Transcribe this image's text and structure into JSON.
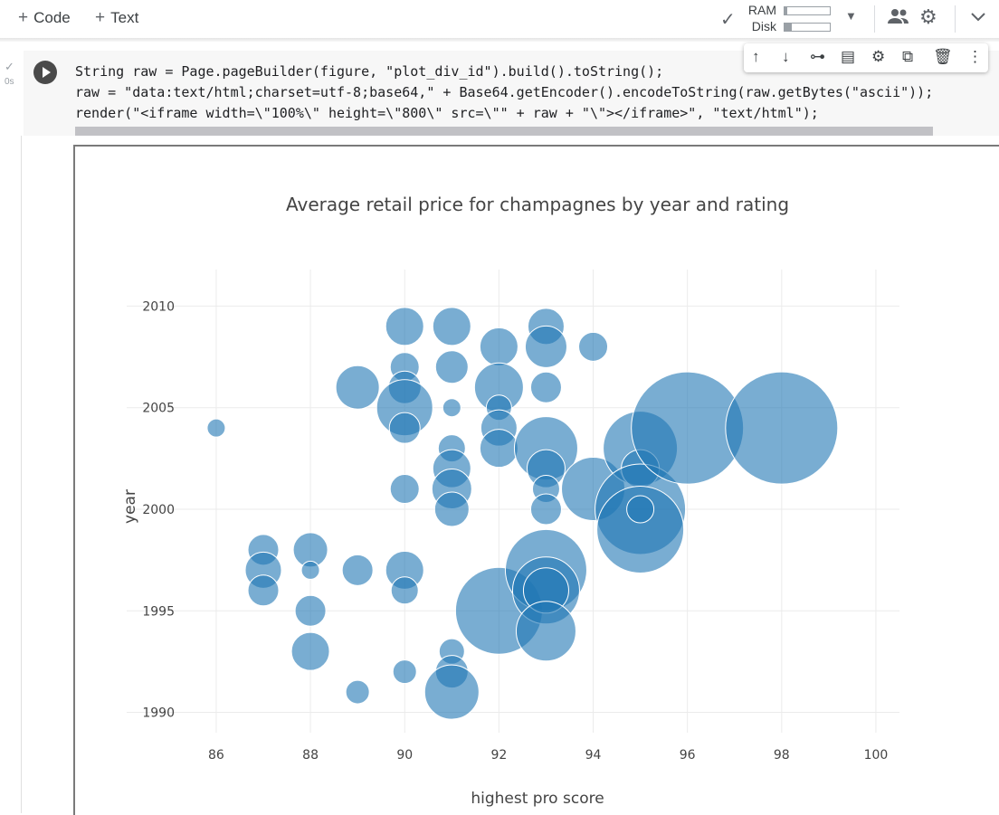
{
  "toolbar": {
    "add_code_label": "Code",
    "add_text_label": "Text",
    "ram_label": "RAM",
    "disk_label": "Disk",
    "ram_usage": 0.06,
    "disk_usage": 0.16
  },
  "cell": {
    "exec_time": "0s",
    "code_lines": [
      "String raw = Page.pageBuilder(figure, \"plot_div_id\").build().toString();",
      "raw = \"data:text/html;charset=utf-8;base64,\" + Base64.getEncoder().encodeToString(raw.getBytes(\"ascii\"));",
      "render(\"<iframe width=\\\"100%\\\" height=\\\"800\\\" src=\\\"\" + raw + \"\\\"></iframe>\", \"text/html\");"
    ]
  },
  "icons": {
    "toolbar": [
      "check-icon",
      "dropdown-icon",
      "share-icon",
      "settings-icon",
      "collapse-icon"
    ],
    "cell": [
      "move-up-icon",
      "move-down-icon",
      "link-icon",
      "comment-icon",
      "cell-settings-icon",
      "mirror-icon",
      "delete-icon",
      "more-icon"
    ]
  },
  "colors": {
    "marker": "#1f77b4",
    "grid": "#ebebeb",
    "text": "#444444"
  },
  "chart_data": {
    "type": "scatter",
    "title": "Average retail price for champagnes by year and rating",
    "xlabel": "highest pro score",
    "ylabel": "year",
    "xticks": [
      86,
      88,
      90,
      92,
      94,
      96,
      98,
      100
    ],
    "yticks": [
      1990,
      1995,
      2000,
      2005,
      2010
    ],
    "xlim": [
      84.1,
      100.5
    ],
    "ylim": [
      1989,
      2011.8
    ],
    "marker_color": "#1f77b4",
    "marker_opacity": 0.6,
    "points": [
      {
        "x": 86,
        "y": 2004,
        "r": 10
      },
      {
        "x": 87,
        "y": 1998,
        "r": 17
      },
      {
        "x": 87,
        "y": 1997,
        "r": 20
      },
      {
        "x": 87,
        "y": 1996,
        "r": 17
      },
      {
        "x": 88,
        "y": 1998,
        "r": 19
      },
      {
        "x": 88,
        "y": 1997,
        "r": 10
      },
      {
        "x": 88,
        "y": 1995,
        "r": 17
      },
      {
        "x": 88,
        "y": 1993,
        "r": 21
      },
      {
        "x": 89,
        "y": 2006,
        "r": 24
      },
      {
        "x": 89,
        "y": 1997,
        "r": 17
      },
      {
        "x": 89,
        "y": 1991,
        "r": 13
      },
      {
        "x": 90,
        "y": 2009,
        "r": 21
      },
      {
        "x": 90,
        "y": 2007,
        "r": 16
      },
      {
        "x": 90,
        "y": 2006,
        "r": 18
      },
      {
        "x": 90,
        "y": 2005,
        "r": 31
      },
      {
        "x": 90,
        "y": 2004,
        "r": 17
      },
      {
        "x": 90,
        "y": 2001,
        "r": 16
      },
      {
        "x": 90,
        "y": 1997,
        "r": 21
      },
      {
        "x": 90,
        "y": 1996,
        "r": 15
      },
      {
        "x": 90,
        "y": 1992,
        "r": 13
      },
      {
        "x": 91,
        "y": 2009,
        "r": 21
      },
      {
        "x": 91,
        "y": 2007,
        "r": 18
      },
      {
        "x": 91,
        "y": 2005,
        "r": 10
      },
      {
        "x": 91,
        "y": 2003,
        "r": 15
      },
      {
        "x": 91,
        "y": 2002,
        "r": 21
      },
      {
        "x": 91,
        "y": 2001,
        "r": 22
      },
      {
        "x": 91,
        "y": 2000,
        "r": 19
      },
      {
        "x": 91,
        "y": 1993,
        "r": 14
      },
      {
        "x": 91,
        "y": 1992,
        "r": 18
      },
      {
        "x": 91,
        "y": 1991,
        "r": 30
      },
      {
        "x": 92,
        "y": 2008,
        "r": 21
      },
      {
        "x": 92,
        "y": 2006,
        "r": 27
      },
      {
        "x": 92,
        "y": 2005,
        "r": 14
      },
      {
        "x": 92,
        "y": 2004,
        "r": 20
      },
      {
        "x": 92,
        "y": 2003,
        "r": 21
      },
      {
        "x": 92,
        "y": 1995,
        "r": 48
      },
      {
        "x": 93,
        "y": 2009,
        "r": 20
      },
      {
        "x": 93,
        "y": 2008,
        "r": 23
      },
      {
        "x": 93,
        "y": 2006,
        "r": 17
      },
      {
        "x": 93,
        "y": 2003,
        "r": 35
      },
      {
        "x": 93,
        "y": 2002,
        "r": 21
      },
      {
        "x": 93,
        "y": 2001,
        "r": 15
      },
      {
        "x": 93,
        "y": 2000,
        "r": 17
      },
      {
        "x": 93,
        "y": 1997,
        "r": 45
      },
      {
        "x": 93,
        "y": 1996,
        "r": 37
      },
      {
        "x": 93,
        "y": 1996,
        "r": 25
      },
      {
        "x": 93,
        "y": 1994,
        "r": 33
      },
      {
        "x": 94,
        "y": 2008,
        "r": 16
      },
      {
        "x": 94,
        "y": 2001,
        "r": 35
      },
      {
        "x": 95,
        "y": 2003,
        "r": 41
      },
      {
        "x": 95,
        "y": 2002,
        "r": 21
      },
      {
        "x": 95,
        "y": 2000,
        "r": 50
      },
      {
        "x": 95,
        "y": 1999,
        "r": 48
      },
      {
        "x": 95,
        "y": 2000,
        "r": 15
      },
      {
        "x": 96,
        "y": 2004,
        "r": 62
      },
      {
        "x": 98,
        "y": 2004,
        "r": 62
      }
    ]
  }
}
